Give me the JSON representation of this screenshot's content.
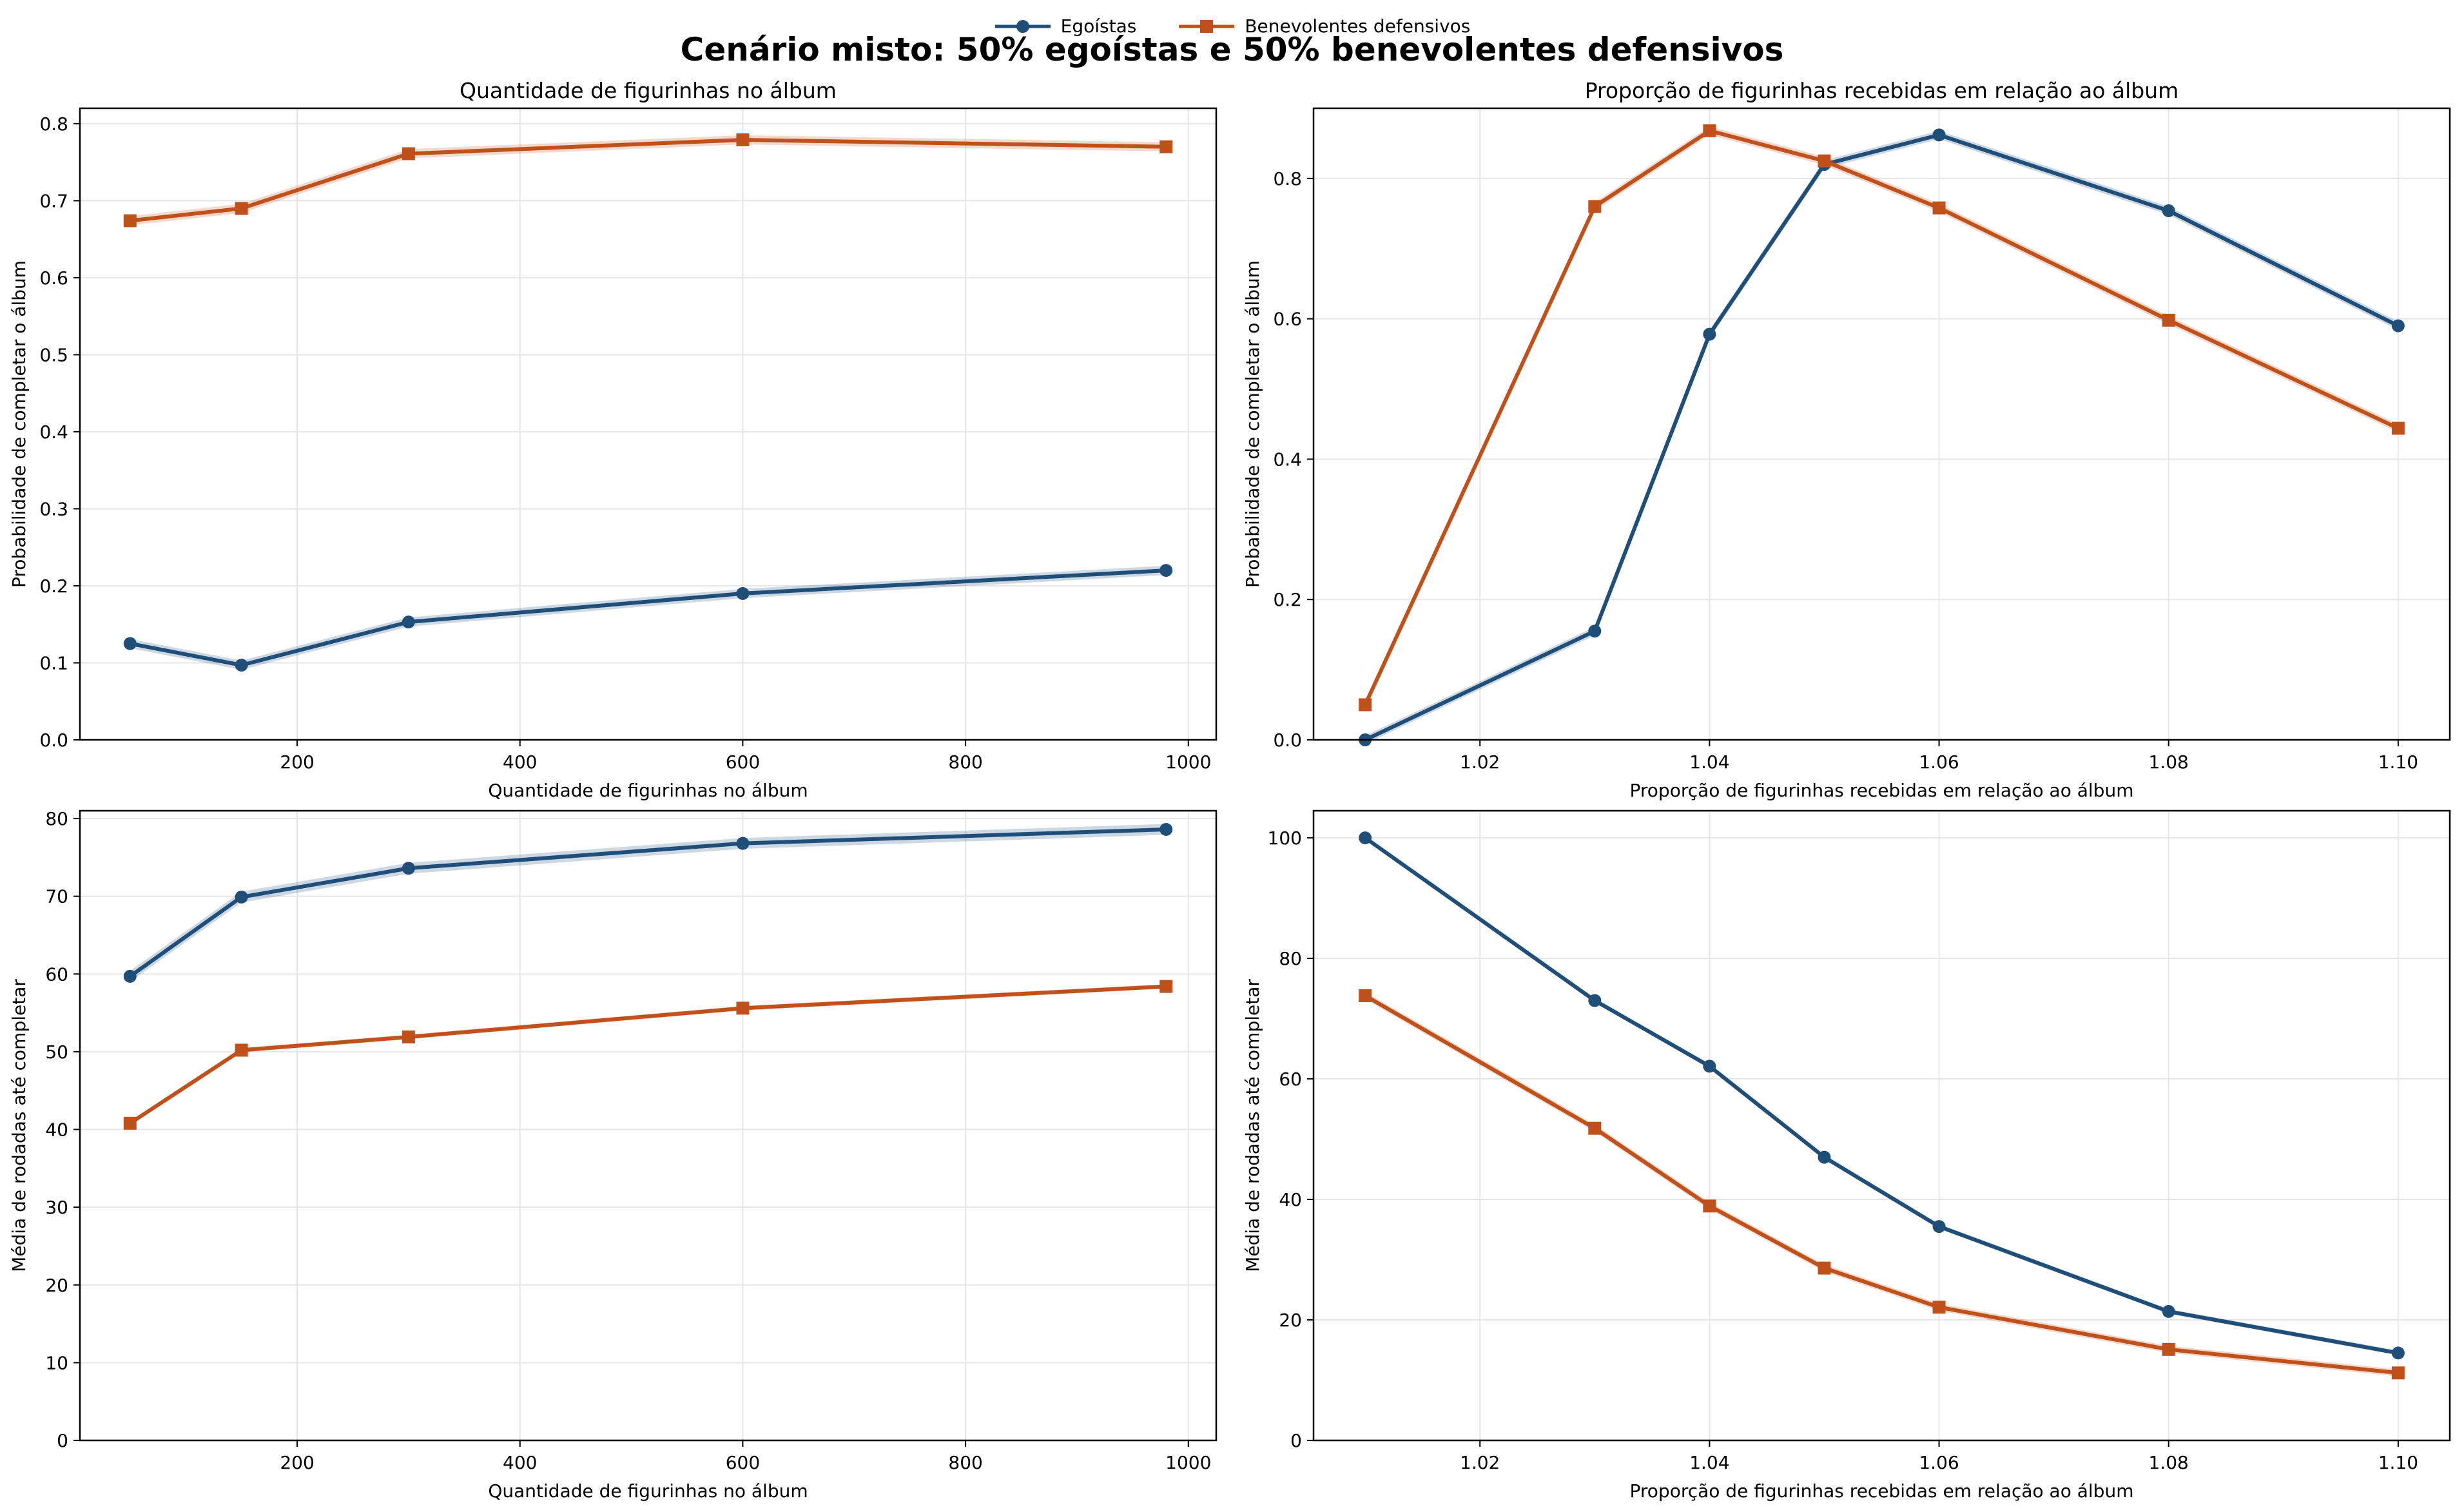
{
  "title": "Cenário misto: 50% egoístas e 50% benevolentes defensivos",
  "legend": [
    {
      "name": "Egoístas",
      "color": "#1f4e79",
      "marker": "circle"
    },
    {
      "name": "Benevolentes defensivos",
      "color": "#c0511a",
      "marker": "square"
    }
  ],
  "chart_data": [
    {
      "type": "line",
      "title": "Quantidade de figurinhas no álbum",
      "xlabel": "Quantidade de figurinhas no álbum",
      "ylabel": "Probabilidade de completar o álbum",
      "xlim": [
        5,
        1025
      ],
      "ylim": [
        0,
        0.82
      ],
      "xticks": [
        200,
        400,
        600,
        800,
        1000
      ],
      "xtick_labels": [
        "200",
        "400",
        "600",
        "800",
        "1000"
      ],
      "yticks": [
        0,
        0.1,
        0.2,
        0.3,
        0.4,
        0.5,
        0.6,
        0.7,
        0.8
      ],
      "ytick_labels": [
        "0.0",
        "0.1",
        "0.2",
        "0.3",
        "0.4",
        "0.5",
        "0.6",
        "0.7",
        "0.8"
      ],
      "grid": true,
      "x": [
        50,
        150,
        300,
        600,
        980
      ],
      "series": [
        {
          "name": "Egoístas",
          "values": [
            0.125,
            0.097,
            0.153,
            0.19,
            0.22
          ],
          "band": 0.006
        },
        {
          "name": "Benevolentes defensivos",
          "values": [
            0.674,
            0.69,
            0.761,
            0.779,
            0.77
          ],
          "band": 0.006
        }
      ]
    },
    {
      "type": "line",
      "title": "Proporção de figurinhas recebidas em relação ao álbum",
      "xlabel": "Proporção de figurinhas recebidas em relação ao álbum",
      "ylabel": "Probabilidade de completar o álbum",
      "xlim": [
        1.0055,
        1.1045
      ],
      "ylim": [
        0,
        0.9
      ],
      "xticks": [
        1.02,
        1.04,
        1.06,
        1.08,
        1.1
      ],
      "xtick_labels": [
        "1.02",
        "1.04",
        "1.06",
        "1.08",
        "1.10"
      ],
      "yticks": [
        0,
        0.2,
        0.4,
        0.6,
        0.8
      ],
      "ytick_labels": [
        "0.0",
        "0.2",
        "0.4",
        "0.6",
        "0.8"
      ],
      "grid": true,
      "x": [
        1.01,
        1.03,
        1.04,
        1.05,
        1.06,
        1.08,
        1.1
      ],
      "series": [
        {
          "name": "Egoístas",
          "values": [
            0.0,
            0.155,
            0.578,
            0.82,
            0.862,
            0.754,
            0.59
          ],
          "band": 0.006
        },
        {
          "name": "Benevolentes defensivos",
          "values": [
            0.05,
            0.76,
            0.868,
            0.825,
            0.758,
            0.598,
            0.444
          ],
          "band": 0.006
        }
      ]
    },
    {
      "type": "line",
      "title": "",
      "xlabel": "Quantidade de figurinhas no álbum",
      "ylabel": "Média de rodadas até completar",
      "xlim": [
        5,
        1025
      ],
      "ylim": [
        0,
        81
      ],
      "xticks": [
        200,
        400,
        600,
        800,
        1000
      ],
      "xtick_labels": [
        "200",
        "400",
        "600",
        "800",
        "1000"
      ],
      "yticks": [
        0,
        10,
        20,
        30,
        40,
        50,
        60,
        70,
        80
      ],
      "ytick_labels": [
        "0",
        "10",
        "20",
        "30",
        "40",
        "50",
        "60",
        "70",
        "80"
      ],
      "grid": true,
      "x": [
        50,
        150,
        300,
        600,
        980
      ],
      "series": [
        {
          "name": "Egoístas",
          "values": [
            59.7,
            69.9,
            73.6,
            76.8,
            78.6
          ],
          "band": 0.7
        },
        {
          "name": "Benevolentes defensivos",
          "values": [
            40.8,
            50.2,
            51.9,
            55.6,
            58.4
          ],
          "band": 0.3
        }
      ]
    },
    {
      "type": "line",
      "title": "",
      "xlabel": "Proporção de figurinhas recebidas em relação ao álbum",
      "ylabel": "Média de rodadas até completar",
      "xlim": [
        1.0055,
        1.1045
      ],
      "ylim": [
        0,
        104.5
      ],
      "xticks": [
        1.02,
        1.04,
        1.06,
        1.08,
        1.1
      ],
      "xtick_labels": [
        "1.02",
        "1.04",
        "1.06",
        "1.08",
        "1.10"
      ],
      "yticks": [
        0,
        20,
        40,
        60,
        80,
        100
      ],
      "ytick_labels": [
        "0",
        "20",
        "40",
        "60",
        "80",
        "100"
      ],
      "grid": true,
      "x": [
        1.01,
        1.03,
        1.04,
        1.05,
        1.06,
        1.08,
        1.1
      ],
      "series": [
        {
          "name": "Egoístas",
          "values": [
            100.0,
            73.0,
            62.1,
            47.0,
            35.5,
            21.4,
            14.5
          ],
          "band": 0.4
        },
        {
          "name": "Benevolentes defensivos",
          "values": [
            73.8,
            51.8,
            38.9,
            28.6,
            22.1,
            15.1,
            11.2
          ],
          "band": 0.6
        }
      ]
    }
  ]
}
